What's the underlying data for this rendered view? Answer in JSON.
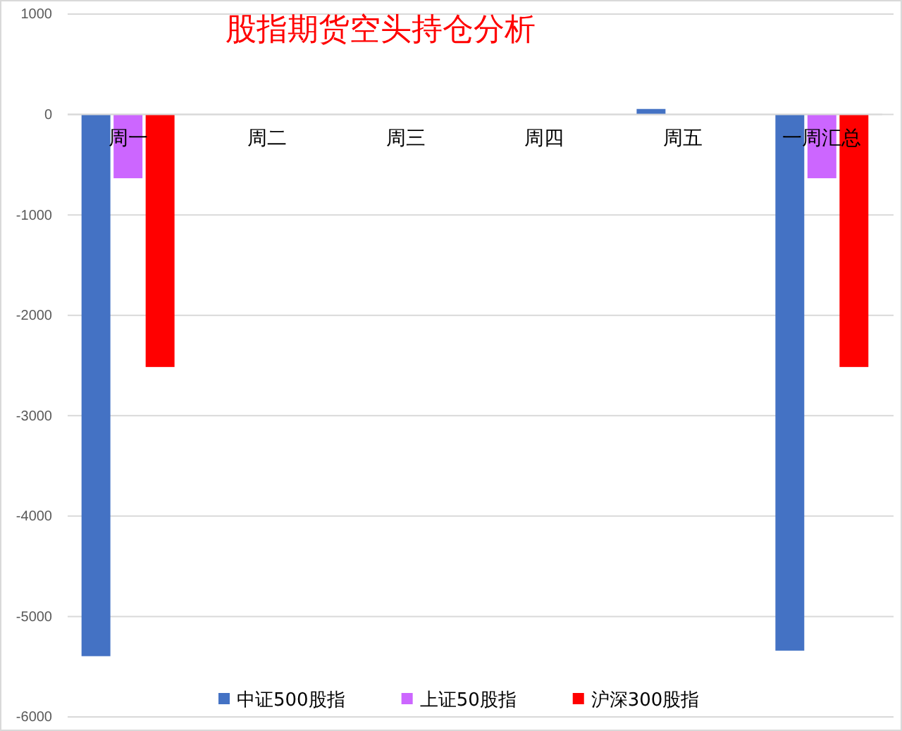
{
  "chart_data": {
    "type": "bar",
    "title": "股指期货空头持仓分析",
    "categories": [
      "周一",
      "周二",
      "周三",
      "周四",
      "周五",
      "一周汇总"
    ],
    "series": [
      {
        "name": "中证500股指",
        "color": "#4472c4",
        "values": [
          -5395,
          null,
          null,
          null,
          55,
          -5340
        ]
      },
      {
        "name": "上证50股指",
        "color": "#cc66ff",
        "values": [
          -635,
          null,
          null,
          null,
          null,
          -635
        ]
      },
      {
        "name": "沪深300股指",
        "color": "#ff0000",
        "values": [
          -2515,
          null,
          null,
          null,
          null,
          -2515
        ]
      }
    ],
    "ylim": [
      -6000,
      1000
    ],
    "yticks": [
      -6000,
      -5000,
      -4000,
      -3000,
      -2000,
      -1000,
      0,
      1000
    ],
    "grid": "y",
    "legend": "bottom"
  }
}
